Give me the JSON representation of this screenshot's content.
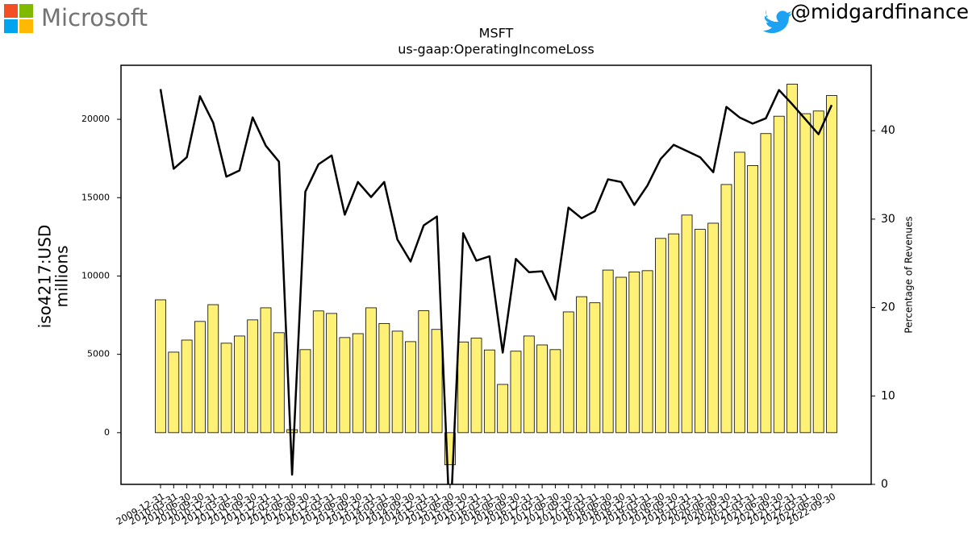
{
  "header": {
    "brand": "Microsoft",
    "handle": "@midgardfinance"
  },
  "chart_data": {
    "type": "bar",
    "title": "MSFT",
    "subtitle": "us-gaap:OperatingIncomeLoss",
    "ylabel": [
      "iso4217:USD",
      "millions"
    ],
    "y2label": "Percentage of Revenues",
    "categories": [
      "2009-12-31",
      "2010-03-31",
      "2010-06-30",
      "2010-09-30",
      "2010-12-31",
      "2011-03-31",
      "2011-06-30",
      "2011-09-30",
      "2011-12-31",
      "2012-03-31",
      "2012-06-30",
      "2012-09-30",
      "2012-12-31",
      "2013-03-31",
      "2013-06-30",
      "2013-09-30",
      "2013-12-31",
      "2014-03-31",
      "2014-06-30",
      "2014-09-30",
      "2014-12-31",
      "2015-03-31",
      "2015-06-30",
      "2015-09-30",
      "2015-12-31",
      "2016-03-31",
      "2016-06-30",
      "2016-09-30",
      "2016-12-31",
      "2017-03-31",
      "2017-06-30",
      "2017-09-30",
      "2017-12-31",
      "2018-03-31",
      "2018-06-30",
      "2018-09-30",
      "2018-12-31",
      "2019-03-31",
      "2019-06-30",
      "2019-09-30",
      "2019-12-31",
      "2020-03-31",
      "2020-06-30",
      "2020-09-30",
      "2020-12-31",
      "2021-03-31",
      "2021-06-30",
      "2021-09-30",
      "2021-12-31",
      "2022-03-31",
      "2022-06-30",
      "2022-09-30"
    ],
    "series": [
      {
        "type": "bar",
        "color": "#fff176",
        "values": [
          8480,
          5140,
          5910,
          7100,
          8170,
          5710,
          6170,
          7200,
          7970,
          6380,
          192,
          5300,
          7770,
          7610,
          6070,
          6320,
          7970,
          6970,
          6480,
          5810,
          7780,
          6590,
          -2050,
          5790,
          6030,
          5280,
          3080,
          5200,
          6170,
          5600,
          5300,
          7710,
          8680,
          8290,
          10380,
          9920,
          10260,
          10340,
          12400,
          12690,
          13890,
          12980,
          13370,
          15840,
          17900,
          17050,
          19090,
          20200,
          22250,
          20360,
          20530,
          21520
        ]
      },
      {
        "type": "line",
        "axis": "y2",
        "color": "#000000",
        "values": [
          44.7,
          35.7,
          37.0,
          43.9,
          40.9,
          34.8,
          35.5,
          41.5,
          38.3,
          36.5,
          1.1,
          33.1,
          36.2,
          37.2,
          30.5,
          34.2,
          32.5,
          34.2,
          27.7,
          25.2,
          29.3,
          30.3,
          -5,
          28.4,
          25.3,
          25.8,
          14.9,
          25.5,
          24.0,
          24.1,
          20.9,
          31.3,
          30.1,
          30.9,
          34.5,
          34.2,
          31.6,
          33.8,
          36.8,
          38.4,
          37.7,
          37.0,
          35.3,
          42.7,
          41.5,
          40.8,
          41.4,
          44.6,
          43.0,
          41.3,
          39.6,
          42.9
        ]
      }
    ],
    "ylim": [
      -3300,
      23450
    ],
    "yticks": [
      0,
      5000,
      10000,
      15000,
      20000
    ],
    "y2lim": [
      0,
      47.4
    ],
    "y2ticks": [
      0,
      10,
      20,
      30,
      40
    ],
    "grid": false
  }
}
